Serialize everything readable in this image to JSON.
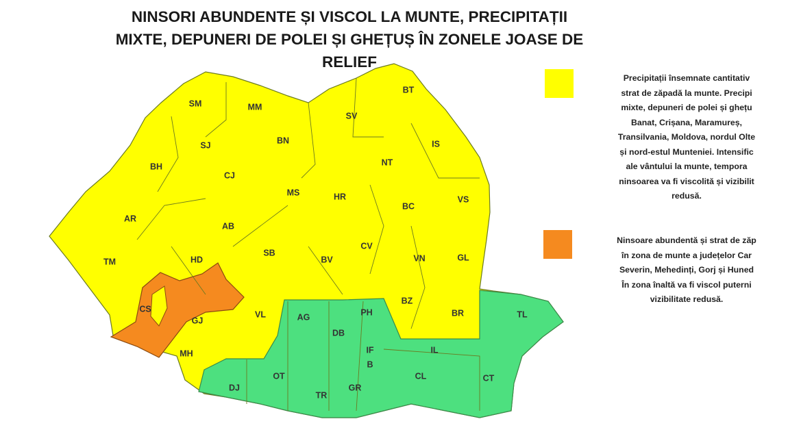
{
  "title": {
    "lines": [
      "NINSORI ABUNDENTE ȘI VISCOL LA MUNTE, PRECIPITAȚII",
      "MIXTE, DEPUNERI DE POLEI ȘI GHEȚUȘ ÎN ZONELE JOASE DE",
      "RELIEF"
    ]
  },
  "colors": {
    "yellow_warning": "#ffff00",
    "orange_warning": "#f58a1f",
    "no_warning": "#4de07f",
    "border": "#5a6b1a"
  },
  "legend": [
    {
      "level": "yellow",
      "color": "#ffff00",
      "lines": [
        "Precipitații însemnate cantitativ",
        "strat de zăpadă la munte. Precipi",
        "mixte, depuneri de polei și ghețu",
        "Banat, Crișana, Maramureș,",
        "Transilvania, Moldova, nordul Olte",
        "și nord-estul Munteniei. Intensific",
        "ale vântului la munte, tempora",
        "ninsoarea va fi viscolită și vizibilit",
        "redusă."
      ]
    },
    {
      "level": "orange",
      "color": "#f58a1f",
      "lines": [
        "Ninsoare abundentă și strat de zăp",
        "în zona de munte a județelor Car",
        "Severin, Mehedinți, Gorj și Huned",
        "În zona înaltă va fi viscol puterni",
        "vizibilitate redusă."
      ]
    }
  ],
  "counties": [
    "SM",
    "MM",
    "BT",
    "SV",
    "SJ",
    "BN",
    "IS",
    "BH",
    "CJ",
    "NT",
    "MS",
    "HR",
    "BC",
    "VS",
    "AR",
    "AB",
    "TM",
    "HD",
    "SB",
    "BV",
    "CV",
    "VN",
    "GL",
    "CS",
    "GJ",
    "VL",
    "AG",
    "PH",
    "BZ",
    "BR",
    "TL",
    "DB",
    "IF",
    "B",
    "IL",
    "MH",
    "DJ",
    "OT",
    "TR",
    "GR",
    "CL",
    "CT"
  ]
}
